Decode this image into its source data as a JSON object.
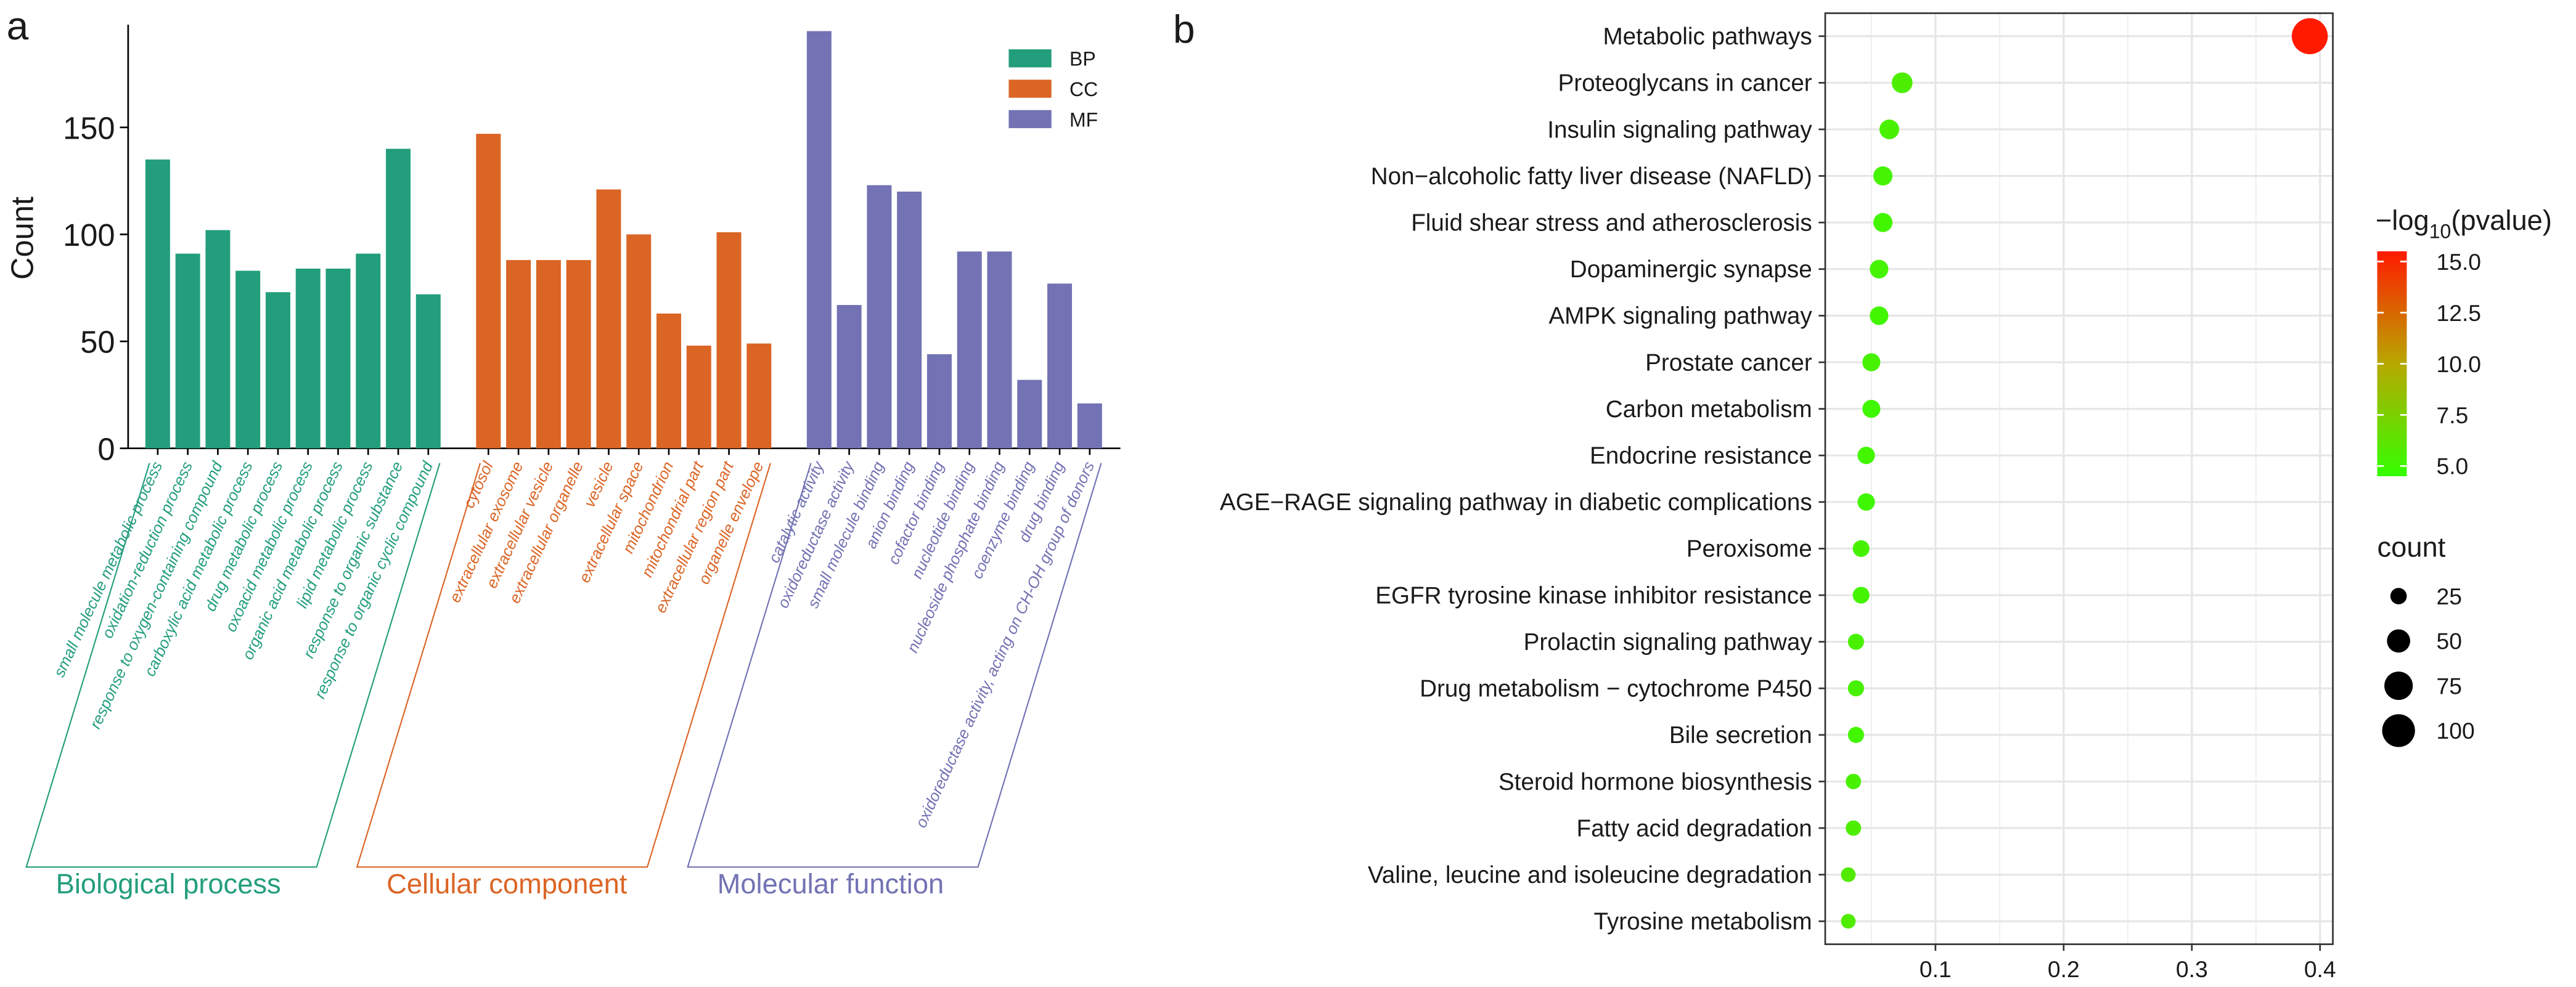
{
  "chart_data": [
    {
      "type": "grouped-bar",
      "panel": "a",
      "ylabel": "Count",
      "ylim": [
        0,
        198
      ],
      "yticks": [
        0,
        50,
        100,
        150
      ],
      "series": [
        {
          "name": "BP",
          "label": "Biological process",
          "color": "#239e7c",
          "categories": [
            "small molecule metabolic process",
            "oxidation-reduction process",
            "response to oxygen-containing compound",
            "carboxylic acid metabolic process",
            "drug metabolic process",
            "oxoacid metabolic process",
            "organic acid metabolic process",
            "lipid metabolic process",
            "response to organic substance",
            "response to organic cyclic compound"
          ],
          "values": [
            135,
            91,
            102,
            83,
            73,
            84,
            84,
            91,
            140,
            72
          ]
        },
        {
          "name": "CC",
          "label": "Cellular component",
          "color": "#db6525",
          "categories": [
            "cytosol",
            "extracellular exosome",
            "extracellular vesicle",
            "extracellular organelle",
            "vesicle",
            "extracellular space",
            "mitochondrion",
            "mitochondrial part",
            "extracellular region part",
            "organelle envelope"
          ],
          "values": [
            147,
            88,
            88,
            88,
            121,
            100,
            63,
            48,
            101,
            49
          ]
        },
        {
          "name": "MF",
          "label": "Molecular function",
          "color": "#7272b4",
          "categories": [
            "catalytic activity",
            "oxidoreductase activity",
            "small molecule binding",
            "anion binding",
            "cofactor binding",
            "nucleotide binding",
            "nucleoside phosphate binding",
            "coenzyme binding",
            "drug binding",
            "oxidoreductase activity, acting on CH-OH group of donors"
          ],
          "values": [
            195,
            67,
            123,
            120,
            44,
            92,
            92,
            32,
            77,
            21
          ]
        }
      ]
    },
    {
      "type": "dot",
      "panel": "b",
      "categories": [
        "Metabolic pathways",
        "Proteoglycans in cancer",
        "Insulin signaling pathway",
        "Non−alcoholic fatty liver disease (NAFLD)",
        "Fluid shear stress and atherosclerosis",
        "Dopaminergic synapse",
        "AMPK signaling pathway",
        "Prostate cancer",
        "Carbon metabolism",
        "Endocrine resistance",
        "AGE−RAGE signaling pathway in diabetic complications",
        "Peroxisome",
        "EGFR tyrosine kinase inhibitor resistance",
        "Prolactin signaling pathway",
        "Drug metabolism − cytochrome P450",
        "Bile secretion",
        "Steroid hormone biosynthesis",
        "Fatty acid degradation",
        "Valine, leucine and isoleucine degradation",
        "Tyrosine metabolism"
      ],
      "values": [
        0.392,
        0.074,
        0.064,
        0.059,
        0.059,
        0.056,
        0.056,
        0.05,
        0.05,
        0.046,
        0.046,
        0.042,
        0.042,
        0.038,
        0.038,
        0.038,
        0.036,
        0.036,
        0.032,
        0.032
      ],
      "counts": [
        120,
        40,
        36,
        34,
        34,
        32,
        32,
        30,
        30,
        28,
        28,
        26,
        26,
        24,
        24,
        24,
        22,
        22,
        20,
        20
      ],
      "pvalues": [
        15.5,
        5.6,
        5.4,
        5.2,
        5.1,
        5.2,
        5.1,
        5.3,
        5.0,
        5.1,
        5.0,
        5.3,
        5.2,
        5.4,
        5.3,
        5.1,
        5.4,
        5.6,
        5.8,
        5.7
      ],
      "xlim": [
        0.014,
        0.41
      ],
      "xticks": [
        0.1,
        0.2,
        0.3,
        0.4
      ],
      "grid": true,
      "color_title": [
        "−log",
        "10",
        "(pvalue)"
      ],
      "clim": [
        4.5,
        15.5
      ],
      "cticks": [
        {
          "value": 5,
          "label": "5.0"
        },
        7.5,
        {
          "value": 10,
          "label": "10.0"
        },
        12.5,
        {
          "value": 15,
          "label": "15.0"
        }
      ],
      "size_title": "count",
      "size_ticks": [
        25,
        50,
        75,
        100
      ]
    }
  ]
}
